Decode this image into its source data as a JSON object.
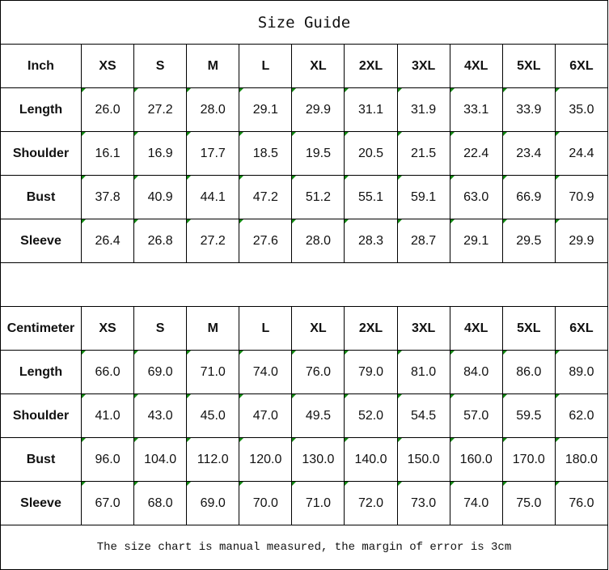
{
  "title": "Size Guide",
  "sizes": [
    "XS",
    "S",
    "M",
    "L",
    "XL",
    "2XL",
    "3XL",
    "4XL",
    "5XL",
    "6XL"
  ],
  "inch": {
    "unit_label": "Inch",
    "rows": [
      {
        "label": "Length",
        "values": [
          "26.0",
          "27.2",
          "28.0",
          "29.1",
          "29.9",
          "31.1",
          "31.9",
          "33.1",
          "33.9",
          "35.0"
        ]
      },
      {
        "label": "Shoulder",
        "values": [
          "16.1",
          "16.9",
          "17.7",
          "18.5",
          "19.5",
          "20.5",
          "21.5",
          "22.4",
          "23.4",
          "24.4"
        ]
      },
      {
        "label": "Bust",
        "values": [
          "37.8",
          "40.9",
          "44.1",
          "47.2",
          "51.2",
          "55.1",
          "59.1",
          "63.0",
          "66.9",
          "70.9"
        ]
      },
      {
        "label": "Sleeve",
        "values": [
          "26.4",
          "26.8",
          "27.2",
          "27.6",
          "28.0",
          "28.3",
          "28.7",
          "29.1",
          "29.5",
          "29.9"
        ]
      }
    ]
  },
  "centimeter": {
    "unit_label": "Centimeter",
    "rows": [
      {
        "label": "Length",
        "values": [
          "66.0",
          "69.0",
          "71.0",
          "74.0",
          "76.0",
          "79.0",
          "81.0",
          "84.0",
          "86.0",
          "89.0"
        ]
      },
      {
        "label": "Shoulder",
        "values": [
          "41.0",
          "43.0",
          "45.0",
          "47.0",
          "49.5",
          "52.0",
          "54.5",
          "57.0",
          "59.5",
          "62.0"
        ]
      },
      {
        "label": "Bust",
        "values": [
          "96.0",
          "104.0",
          "112.0",
          "120.0",
          "130.0",
          "140.0",
          "150.0",
          "160.0",
          "170.0",
          "180.0"
        ]
      },
      {
        "label": "Sleeve",
        "values": [
          "67.0",
          "68.0",
          "69.0",
          "70.0",
          "71.0",
          "72.0",
          "73.0",
          "74.0",
          "75.0",
          "76.0"
        ]
      }
    ]
  },
  "note": "The size chart is manual measured, the margin of error is 3cm",
  "colors": {
    "cell_marker": "#118811",
    "border": "#000000"
  }
}
